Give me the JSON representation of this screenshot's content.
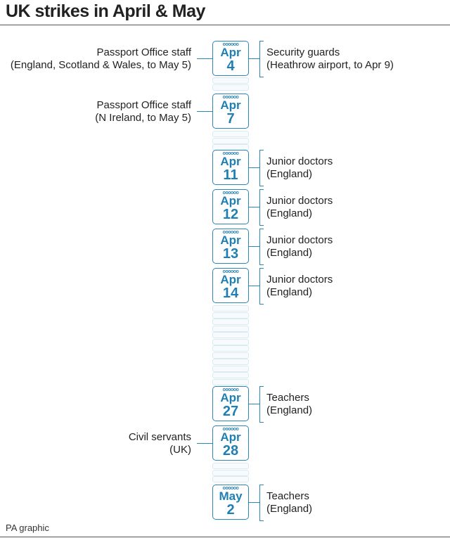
{
  "title": "UK strikes in April & May",
  "credit": "PA graphic",
  "accent_color": "#1f7fb5",
  "events": [
    {
      "month": "Apr",
      "day": "4",
      "left": [
        "Passport Office staff",
        "(England, Scotland & Wales, to May 5)"
      ],
      "right": [
        "Security guards",
        "(Heathrow airport, to Apr 9)"
      ]
    },
    {
      "month": "Apr",
      "day": "7",
      "left": [
        "Passport Office staff",
        "(N Ireland, to May 5)"
      ],
      "right": []
    },
    {
      "month": "Apr",
      "day": "11",
      "left": [],
      "right": [
        "Junior doctors",
        "(England)"
      ]
    },
    {
      "month": "Apr",
      "day": "12",
      "left": [],
      "right": [
        "Junior doctors",
        "(England)"
      ]
    },
    {
      "month": "Apr",
      "day": "13",
      "left": [],
      "right": [
        "Junior doctors",
        "(England)"
      ]
    },
    {
      "month": "Apr",
      "day": "14",
      "left": [],
      "right": [
        "Junior doctors",
        "(England)"
      ]
    },
    {
      "month": "Apr",
      "day": "27",
      "left": [],
      "right": [
        "Teachers",
        "(England)"
      ]
    },
    {
      "month": "Apr",
      "day": "28",
      "left": [
        "Civil servants",
        "(UK)"
      ],
      "right": []
    },
    {
      "month": "May",
      "day": "2",
      "left": [],
      "right": [
        "Teachers",
        "(England)"
      ]
    }
  ]
}
